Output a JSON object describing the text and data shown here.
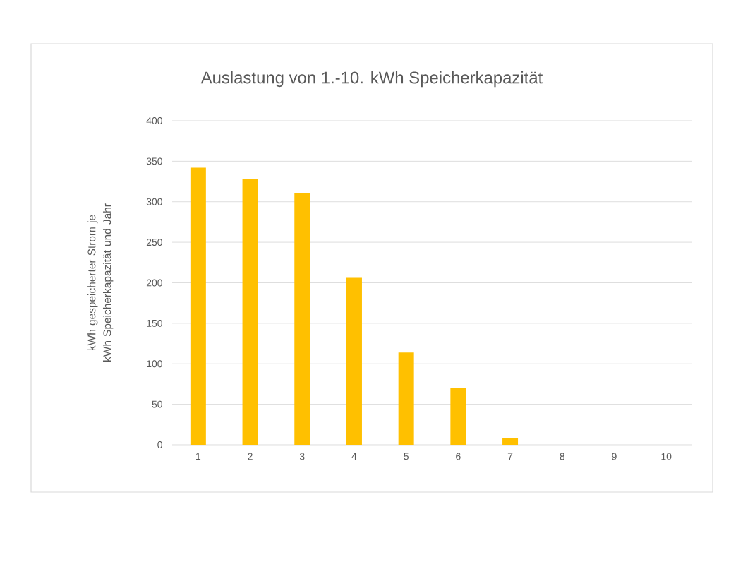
{
  "chart_data": {
    "type": "bar",
    "title": "Auslastung von 1.-10. kWh Speicherkapazität",
    "ylabel": "kWh gespeicherter Strom je kWh Speicherkapazität und Jahr",
    "categories": [
      "1",
      "2",
      "3",
      "4",
      "5",
      "6",
      "7",
      "8",
      "9",
      "10"
    ],
    "values": [
      342,
      328,
      311,
      206,
      114,
      70,
      8,
      0,
      0,
      0
    ],
    "color": "#ffc000",
    "ylim": [
      0,
      400
    ],
    "yticks": [
      0,
      50,
      100,
      150,
      200,
      250,
      300,
      350,
      400
    ],
    "grid": "y"
  }
}
